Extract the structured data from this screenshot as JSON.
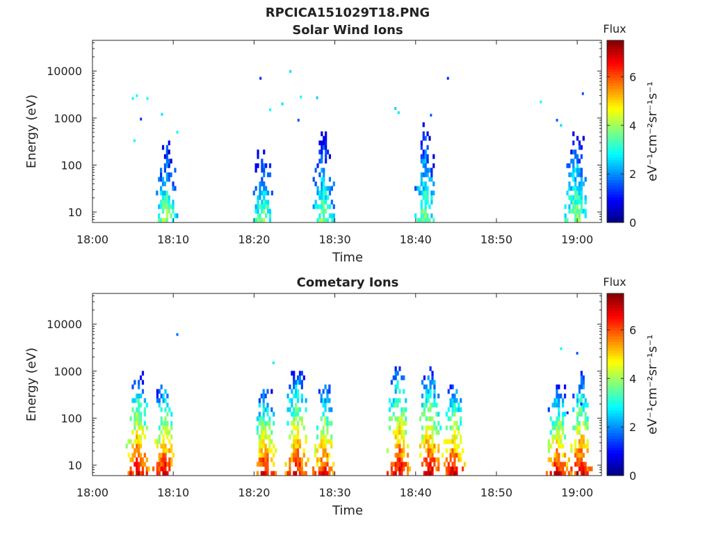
{
  "figure": {
    "main_title": "RPCICA151029T18.PNG",
    "time_axis_label": "Time",
    "energy_axis_label": "Energy (eV)",
    "colorbar_title": "Flux",
    "colorbar_unit": "eV⁻¹cm⁻²sr⁻¹s⁻¹",
    "colormap": "jet",
    "colorbar_colors": [
      "#00007f",
      "#0000ff",
      "#007fff",
      "#00ffff",
      "#7fff7f",
      "#ffff00",
      "#ff7f00",
      "#ff0000",
      "#7f0000"
    ]
  },
  "chart_data": [
    {
      "type": "heatmap",
      "title": "Solar Wind Ions",
      "xlabel": "Time",
      "ylabel": "Energy (eV)",
      "xlim": [
        "18:00",
        "19:03"
      ],
      "x_ticks": [
        "18:00",
        "18:10",
        "18:20",
        "18:30",
        "18:40",
        "18:50",
        "19:00"
      ],
      "y_scale": "log",
      "ylim": [
        6,
        45000
      ],
      "y_ticks": [
        "10",
        "100",
        "1000",
        "10000"
      ],
      "colorbar": {
        "label": "Flux",
        "range": [
          0,
          7.5
        ],
        "ticks": [
          "0",
          "2",
          "4",
          "6"
        ]
      },
      "bursts": [
        {
          "time_min": 9.0,
          "e_min": 6,
          "e_max": 250,
          "peak_flux": 4.2
        },
        {
          "time_min": 21.0,
          "e_min": 6,
          "e_max": 200,
          "peak_flux": 4.0
        },
        {
          "time_min": 28.4,
          "e_min": 6,
          "e_max": 450,
          "peak_flux": 3.9
        },
        {
          "time_min": 41.0,
          "e_min": 6,
          "e_max": 600,
          "peak_flux": 3.9
        },
        {
          "time_min": 59.8,
          "e_min": 6,
          "e_max": 500,
          "peak_flux": 4.1
        }
      ],
      "sparse_points": [
        {
          "time_min": 5.0,
          "energy": 2600,
          "flux": 2.8
        },
        {
          "time_min": 5.5,
          "energy": 3000,
          "flux": 2.9
        },
        {
          "time_min": 6.0,
          "energy": 950,
          "flux": 1.3
        },
        {
          "time_min": 6.8,
          "energy": 2600,
          "flux": 2.9
        },
        {
          "time_min": 5.2,
          "energy": 330,
          "flux": 2.8
        },
        {
          "time_min": 8.6,
          "energy": 1200,
          "flux": 2.6
        },
        {
          "time_min": 10.5,
          "energy": 500,
          "flux": 2.8
        },
        {
          "time_min": 20.8,
          "energy": 7000,
          "flux": 1.2
        },
        {
          "time_min": 24.5,
          "energy": 9800,
          "flux": 2.6
        },
        {
          "time_min": 22.0,
          "energy": 1500,
          "flux": 2.8
        },
        {
          "time_min": 23.5,
          "energy": 2000,
          "flux": 2.6
        },
        {
          "time_min": 25.8,
          "energy": 2800,
          "flux": 2.9
        },
        {
          "time_min": 25.5,
          "energy": 900,
          "flux": 1.5
        },
        {
          "time_min": 27.8,
          "energy": 2700,
          "flux": 2.5
        },
        {
          "time_min": 37.5,
          "energy": 1600,
          "flux": 2.5
        },
        {
          "time_min": 37.9,
          "energy": 1300,
          "flux": 2.7
        },
        {
          "time_min": 44.0,
          "energy": 7000,
          "flux": 1.2
        },
        {
          "time_min": 41.9,
          "energy": 1150,
          "flux": 1.6
        },
        {
          "time_min": 55.5,
          "energy": 2200,
          "flux": 2.9
        },
        {
          "time_min": 57.5,
          "energy": 900,
          "flux": 1.6
        },
        {
          "time_min": 58.0,
          "energy": 700,
          "flux": 2.6
        },
        {
          "time_min": 60.7,
          "energy": 3300,
          "flux": 1.5
        }
      ]
    },
    {
      "type": "heatmap",
      "title": "Cometary Ions",
      "xlabel": "Time",
      "ylabel": "Energy (eV)",
      "xlim": [
        "18:00",
        "19:03"
      ],
      "x_ticks": [
        "18:00",
        "18:10",
        "18:20",
        "18:30",
        "18:40",
        "18:50",
        "19:00"
      ],
      "y_scale": "log",
      "ylim": [
        6,
        45000
      ],
      "y_ticks": [
        "10",
        "100",
        "1000",
        "10000"
      ],
      "colorbar": {
        "label": "Flux",
        "range": [
          0,
          7.5
        ],
        "ticks": [
          "0",
          "2",
          "4",
          "6"
        ]
      },
      "bursts": [
        {
          "time_min": 5.5,
          "e_min": 6,
          "e_max": 800,
          "peak_flux": 7.0
        },
        {
          "time_min": 8.8,
          "e_min": 6,
          "e_max": 500,
          "peak_flux": 7.0
        },
        {
          "time_min": 21.2,
          "e_min": 6,
          "e_max": 400,
          "peak_flux": 6.9
        },
        {
          "time_min": 25.2,
          "e_min": 6,
          "e_max": 1000,
          "peak_flux": 6.9
        },
        {
          "time_min": 28.6,
          "e_min": 6,
          "e_max": 500,
          "peak_flux": 6.8
        },
        {
          "time_min": 37.8,
          "e_min": 6,
          "e_max": 1300,
          "peak_flux": 7.0
        },
        {
          "time_min": 41.6,
          "e_min": 6,
          "e_max": 1000,
          "peak_flux": 7.0
        },
        {
          "time_min": 44.6,
          "e_min": 6,
          "e_max": 500,
          "peak_flux": 7.0
        },
        {
          "time_min": 57.5,
          "e_min": 6,
          "e_max": 400,
          "peak_flux": 7.0
        },
        {
          "time_min": 60.3,
          "e_min": 6,
          "e_max": 700,
          "peak_flux": 7.0
        }
      ],
      "sparse_points": [
        {
          "time_min": 10.5,
          "energy": 6000,
          "flux": 1.8
        },
        {
          "time_min": 22.4,
          "energy": 1500,
          "flux": 2.7
        },
        {
          "time_min": 58.0,
          "energy": 3000,
          "flux": 2.8
        },
        {
          "time_min": 60.0,
          "energy": 2400,
          "flux": 1.6
        },
        {
          "time_min": 58.8,
          "energy": 130,
          "flux": 1.2
        },
        {
          "time_min": 60.5,
          "energy": 200,
          "flux": 1.3
        }
      ]
    }
  ]
}
